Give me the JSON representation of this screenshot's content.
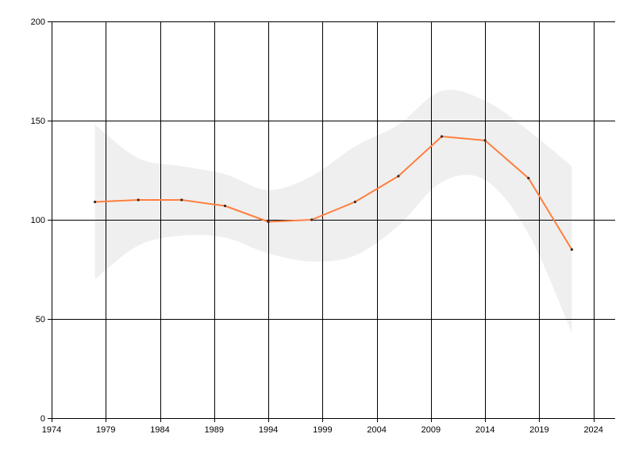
{
  "chart_data": {
    "type": "line",
    "title": "",
    "xlabel": "",
    "ylabel": "",
    "xlim": [
      1974,
      2026
    ],
    "ylim": [
      0,
      200
    ],
    "x_ticks": [
      1974,
      1979,
      1984,
      1989,
      1994,
      1999,
      2004,
      2009,
      2014,
      2019,
      2024
    ],
    "y_ticks": [
      0,
      50,
      100,
      150,
      200
    ],
    "grid": true,
    "legend": "none",
    "series": [
      {
        "color": "#ff7f3f",
        "points": [
          {
            "x": 1978,
            "y": 109
          },
          {
            "x": 1982,
            "y": 110
          },
          {
            "x": 1986,
            "y": 110
          },
          {
            "x": 1990,
            "y": 107
          },
          {
            "x": 1994,
            "y": 99
          },
          {
            "x": 1998,
            "y": 100
          },
          {
            "x": 2002,
            "y": 109
          },
          {
            "x": 2006,
            "y": 122
          },
          {
            "x": 2010,
            "y": 142
          },
          {
            "x": 2014,
            "y": 140
          },
          {
            "x": 2018,
            "y": 121
          },
          {
            "x": 2022,
            "y": 85
          }
        ]
      }
    ],
    "band": {
      "color": "#efefef",
      "points": [
        {
          "x": 1978,
          "lower": 70,
          "upper": 148
        },
        {
          "x": 1982,
          "lower": 87,
          "upper": 131
        },
        {
          "x": 1986,
          "lower": 92,
          "upper": 127
        },
        {
          "x": 1990,
          "lower": 91,
          "upper": 123
        },
        {
          "x": 1994,
          "lower": 83,
          "upper": 115
        },
        {
          "x": 1998,
          "lower": 79,
          "upper": 122
        },
        {
          "x": 2002,
          "lower": 82,
          "upper": 137
        },
        {
          "x": 2006,
          "lower": 97,
          "upper": 148
        },
        {
          "x": 2010,
          "lower": 119,
          "upper": 165
        },
        {
          "x": 2014,
          "lower": 120,
          "upper": 160
        },
        {
          "x": 2018,
          "lower": 93,
          "upper": 145
        },
        {
          "x": 2022,
          "lower": 43,
          "upper": 127
        }
      ]
    }
  }
}
